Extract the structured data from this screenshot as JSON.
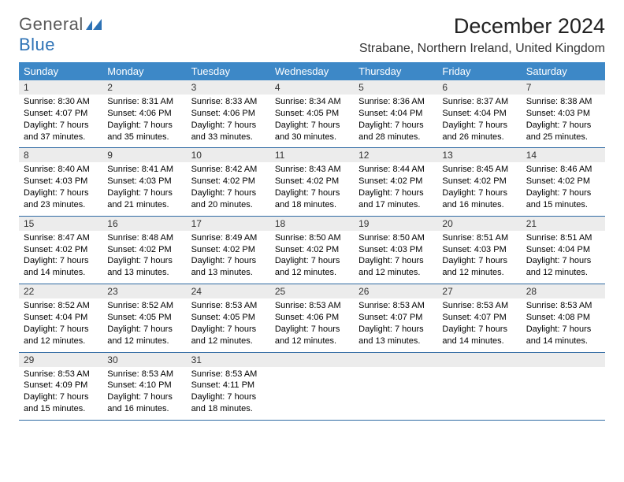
{
  "logo": {
    "word1": "General",
    "word2": "Blue"
  },
  "header": {
    "title": "December 2024",
    "location": "Strabane, Northern Ireland, United Kingdom"
  },
  "colors": {
    "header_bg": "#3d88c7",
    "header_text": "#ffffff",
    "daynum_bg": "#ececec",
    "week_border": "#2f6aa3",
    "logo_gray": "#5a5a5a",
    "logo_blue": "#2d72b5"
  },
  "dow": [
    "Sunday",
    "Monday",
    "Tuesday",
    "Wednesday",
    "Thursday",
    "Friday",
    "Saturday"
  ],
  "weeks": [
    [
      {
        "n": "1",
        "sr": "Sunrise: 8:30 AM",
        "ss": "Sunset: 4:07 PM",
        "d1": "Daylight: 7 hours",
        "d2": "and 37 minutes."
      },
      {
        "n": "2",
        "sr": "Sunrise: 8:31 AM",
        "ss": "Sunset: 4:06 PM",
        "d1": "Daylight: 7 hours",
        "d2": "and 35 minutes."
      },
      {
        "n": "3",
        "sr": "Sunrise: 8:33 AM",
        "ss": "Sunset: 4:06 PM",
        "d1": "Daylight: 7 hours",
        "d2": "and 33 minutes."
      },
      {
        "n": "4",
        "sr": "Sunrise: 8:34 AM",
        "ss": "Sunset: 4:05 PM",
        "d1": "Daylight: 7 hours",
        "d2": "and 30 minutes."
      },
      {
        "n": "5",
        "sr": "Sunrise: 8:36 AM",
        "ss": "Sunset: 4:04 PM",
        "d1": "Daylight: 7 hours",
        "d2": "and 28 minutes."
      },
      {
        "n": "6",
        "sr": "Sunrise: 8:37 AM",
        "ss": "Sunset: 4:04 PM",
        "d1": "Daylight: 7 hours",
        "d2": "and 26 minutes."
      },
      {
        "n": "7",
        "sr": "Sunrise: 8:38 AM",
        "ss": "Sunset: 4:03 PM",
        "d1": "Daylight: 7 hours",
        "d2": "and 25 minutes."
      }
    ],
    [
      {
        "n": "8",
        "sr": "Sunrise: 8:40 AM",
        "ss": "Sunset: 4:03 PM",
        "d1": "Daylight: 7 hours",
        "d2": "and 23 minutes."
      },
      {
        "n": "9",
        "sr": "Sunrise: 8:41 AM",
        "ss": "Sunset: 4:03 PM",
        "d1": "Daylight: 7 hours",
        "d2": "and 21 minutes."
      },
      {
        "n": "10",
        "sr": "Sunrise: 8:42 AM",
        "ss": "Sunset: 4:02 PM",
        "d1": "Daylight: 7 hours",
        "d2": "and 20 minutes."
      },
      {
        "n": "11",
        "sr": "Sunrise: 8:43 AM",
        "ss": "Sunset: 4:02 PM",
        "d1": "Daylight: 7 hours",
        "d2": "and 18 minutes."
      },
      {
        "n": "12",
        "sr": "Sunrise: 8:44 AM",
        "ss": "Sunset: 4:02 PM",
        "d1": "Daylight: 7 hours",
        "d2": "and 17 minutes."
      },
      {
        "n": "13",
        "sr": "Sunrise: 8:45 AM",
        "ss": "Sunset: 4:02 PM",
        "d1": "Daylight: 7 hours",
        "d2": "and 16 minutes."
      },
      {
        "n": "14",
        "sr": "Sunrise: 8:46 AM",
        "ss": "Sunset: 4:02 PM",
        "d1": "Daylight: 7 hours",
        "d2": "and 15 minutes."
      }
    ],
    [
      {
        "n": "15",
        "sr": "Sunrise: 8:47 AM",
        "ss": "Sunset: 4:02 PM",
        "d1": "Daylight: 7 hours",
        "d2": "and 14 minutes."
      },
      {
        "n": "16",
        "sr": "Sunrise: 8:48 AM",
        "ss": "Sunset: 4:02 PM",
        "d1": "Daylight: 7 hours",
        "d2": "and 13 minutes."
      },
      {
        "n": "17",
        "sr": "Sunrise: 8:49 AM",
        "ss": "Sunset: 4:02 PM",
        "d1": "Daylight: 7 hours",
        "d2": "and 13 minutes."
      },
      {
        "n": "18",
        "sr": "Sunrise: 8:50 AM",
        "ss": "Sunset: 4:02 PM",
        "d1": "Daylight: 7 hours",
        "d2": "and 12 minutes."
      },
      {
        "n": "19",
        "sr": "Sunrise: 8:50 AM",
        "ss": "Sunset: 4:03 PM",
        "d1": "Daylight: 7 hours",
        "d2": "and 12 minutes."
      },
      {
        "n": "20",
        "sr": "Sunrise: 8:51 AM",
        "ss": "Sunset: 4:03 PM",
        "d1": "Daylight: 7 hours",
        "d2": "and 12 minutes."
      },
      {
        "n": "21",
        "sr": "Sunrise: 8:51 AM",
        "ss": "Sunset: 4:04 PM",
        "d1": "Daylight: 7 hours",
        "d2": "and 12 minutes."
      }
    ],
    [
      {
        "n": "22",
        "sr": "Sunrise: 8:52 AM",
        "ss": "Sunset: 4:04 PM",
        "d1": "Daylight: 7 hours",
        "d2": "and 12 minutes."
      },
      {
        "n": "23",
        "sr": "Sunrise: 8:52 AM",
        "ss": "Sunset: 4:05 PM",
        "d1": "Daylight: 7 hours",
        "d2": "and 12 minutes."
      },
      {
        "n": "24",
        "sr": "Sunrise: 8:53 AM",
        "ss": "Sunset: 4:05 PM",
        "d1": "Daylight: 7 hours",
        "d2": "and 12 minutes."
      },
      {
        "n": "25",
        "sr": "Sunrise: 8:53 AM",
        "ss": "Sunset: 4:06 PM",
        "d1": "Daylight: 7 hours",
        "d2": "and 12 minutes."
      },
      {
        "n": "26",
        "sr": "Sunrise: 8:53 AM",
        "ss": "Sunset: 4:07 PM",
        "d1": "Daylight: 7 hours",
        "d2": "and 13 minutes."
      },
      {
        "n": "27",
        "sr": "Sunrise: 8:53 AM",
        "ss": "Sunset: 4:07 PM",
        "d1": "Daylight: 7 hours",
        "d2": "and 14 minutes."
      },
      {
        "n": "28",
        "sr": "Sunrise: 8:53 AM",
        "ss": "Sunset: 4:08 PM",
        "d1": "Daylight: 7 hours",
        "d2": "and 14 minutes."
      }
    ],
    [
      {
        "n": "29",
        "sr": "Sunrise: 8:53 AM",
        "ss": "Sunset: 4:09 PM",
        "d1": "Daylight: 7 hours",
        "d2": "and 15 minutes."
      },
      {
        "n": "30",
        "sr": "Sunrise: 8:53 AM",
        "ss": "Sunset: 4:10 PM",
        "d1": "Daylight: 7 hours",
        "d2": "and 16 minutes."
      },
      {
        "n": "31",
        "sr": "Sunrise: 8:53 AM",
        "ss": "Sunset: 4:11 PM",
        "d1": "Daylight: 7 hours",
        "d2": "and 18 minutes."
      },
      {
        "n": "",
        "sr": "",
        "ss": "",
        "d1": "",
        "d2": ""
      },
      {
        "n": "",
        "sr": "",
        "ss": "",
        "d1": "",
        "d2": ""
      },
      {
        "n": "",
        "sr": "",
        "ss": "",
        "d1": "",
        "d2": ""
      },
      {
        "n": "",
        "sr": "",
        "ss": "",
        "d1": "",
        "d2": ""
      }
    ]
  ]
}
